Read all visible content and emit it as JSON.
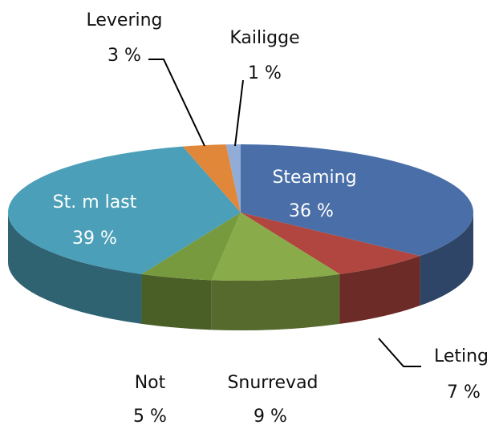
{
  "chart_data": {
    "type": "pie3d",
    "categories": [
      "Steaming",
      "Leting",
      "Snurrevad",
      "Not",
      "St. m last",
      "Levering",
      "Kailigge"
    ],
    "values": [
      36,
      7,
      9,
      5,
      39,
      3,
      1
    ],
    "value_labels": [
      "36 %",
      "7 %",
      "9 %",
      "5 %",
      "39 %",
      "3 %",
      "1 %"
    ],
    "colors": [
      "#4a6fa8",
      "#b0463f",
      "#8aab4a",
      "#789a3e",
      "#4b9fb8",
      "#e0873a",
      "#92acd8"
    ]
  }
}
